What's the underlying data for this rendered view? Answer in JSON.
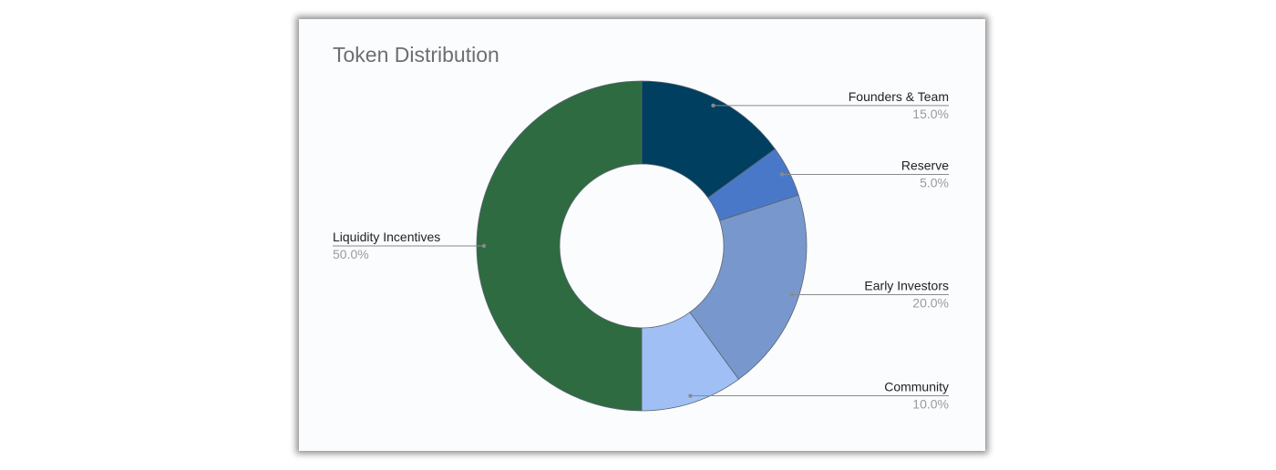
{
  "chart_data": {
    "type": "pie",
    "donut": true,
    "title": "Token Distribution",
    "legend": "labels-on-slices",
    "slices": [
      {
        "label": "Founders & Team",
        "value": 15.0,
        "display": "15.0%",
        "color": "#003f5f"
      },
      {
        "label": "Reserve",
        "value": 5.0,
        "display": "5.0%",
        "color": "#4a78c9"
      },
      {
        "label": "Early Investors",
        "value": 20.0,
        "display": "20.0%",
        "color": "#7898cd"
      },
      {
        "label": "Community",
        "value": 10.0,
        "display": "10.0%",
        "color": "#a0c0f5"
      },
      {
        "label": "Liquidity Incentives",
        "value": 50.0,
        "display": "50.0%",
        "color": "#2e6b41"
      }
    ]
  }
}
